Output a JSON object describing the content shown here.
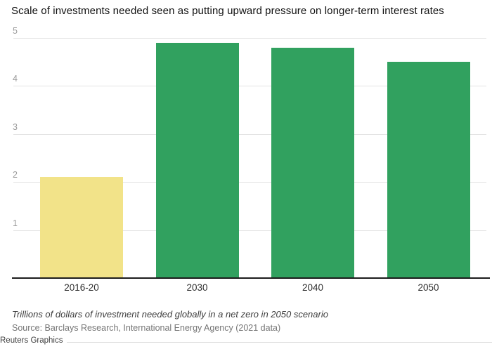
{
  "note": "Trillions of dollars of investment needed globally in a net zero in 2050 scenario",
  "source": "Source: Barclays Research, International Energy Agency (2021 data)",
  "attribution": "Reuters Graphics",
  "colors": {
    "highlight_bar": "#F2E389",
    "main_bar": "#31A15F",
    "gridline": "#e3e3e3",
    "baseline": "#1c1c1c",
    "ytick_label": "#9b9b9b",
    "xtick_label": "#2e2e2e",
    "title_text": "#111111",
    "note_text": "#3d3d3d",
    "source_text": "#757575"
  },
  "chart_data": {
    "type": "bar",
    "title": "Scale of investments needed seen as putting upward pressure on longer-term interest rates",
    "categories": [
      "2016-20",
      "2030",
      "2040",
      "2050"
    ],
    "values": [
      2.1,
      4.9,
      4.8,
      4.5
    ],
    "bar_colors": [
      "#F2E389",
      "#31A15F",
      "#31A15F",
      "#31A15F"
    ],
    "xlabel": "",
    "ylabel": "",
    "yticks": [
      1,
      2,
      3,
      4,
      5
    ],
    "ylim": [
      0,
      5.1
    ],
    "grid": true,
    "legend": "none",
    "value_unit_note": "Trillions of dollars of investment needed globally in a net zero in 2050 scenario"
  }
}
